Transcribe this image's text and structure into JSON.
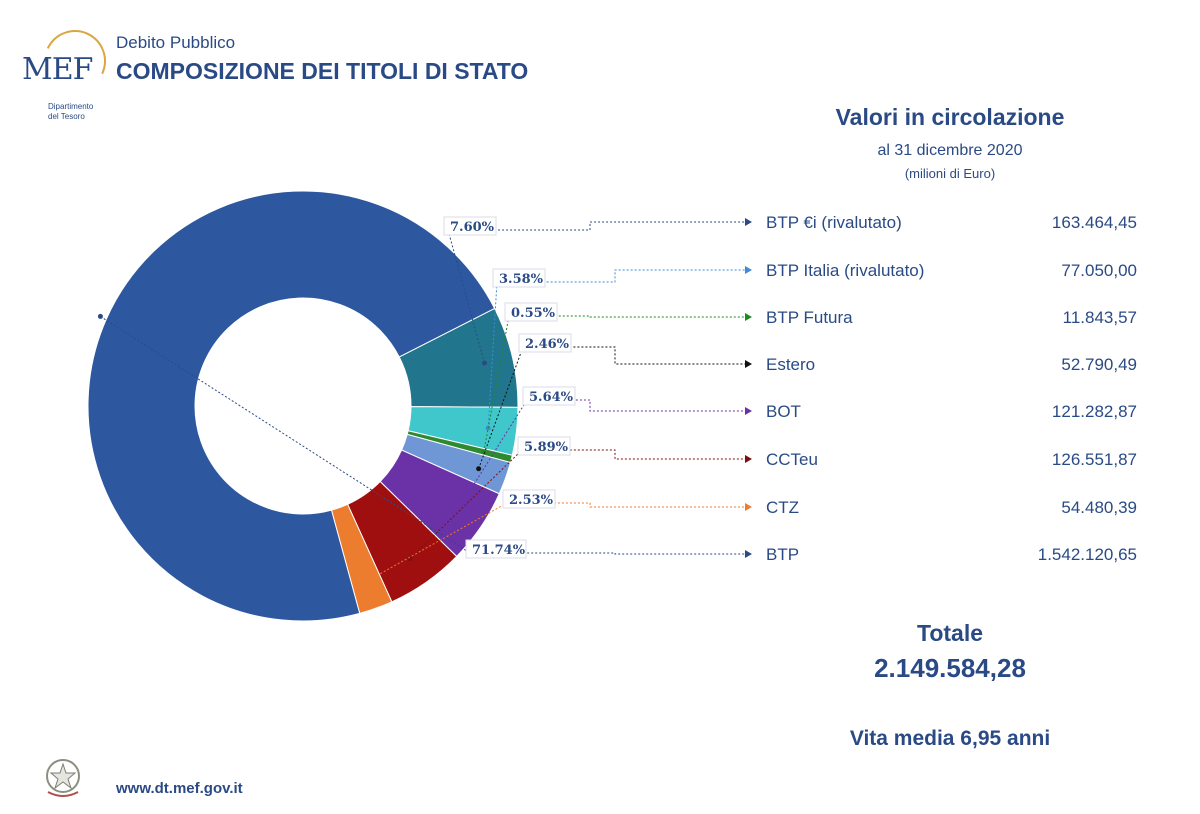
{
  "header": {
    "logo_text": "MEF",
    "logo_subtitle": "Dipartimento\ndel Tesoro",
    "subtitle": "Debito Pubblico",
    "title": "COMPOSIZIONE DEI TITOLI DI STATO"
  },
  "values_panel": {
    "title": "Valori in circolazione",
    "date": "al 31 dicembre 2020",
    "unit": "(milioni di Euro)"
  },
  "summary": {
    "total_label": "Totale",
    "total_value": "2.149.584,28",
    "vita_media": "Vita media 6,95 anni"
  },
  "footer": {
    "url": "www.dt.mef.gov.it",
    "emblem_icon": "italian-republic-emblem-icon"
  },
  "chart_data": {
    "type": "pie",
    "title": "COMPOSIZIONE DEI TITOLI DI STATO",
    "donut": true,
    "slices": [
      {
        "name": "BTP €i (rivalutato)",
        "percent": 7.6,
        "percent_label": "7.60%",
        "value_label": "163.464,45",
        "color": "#21768d"
      },
      {
        "name": "BTP Italia (rivalutato)",
        "percent": 3.58,
        "percent_label": "3.58%",
        "value_label": "77.050,00",
        "color": "#3fc7cc"
      },
      {
        "name": "BTP Futura",
        "percent": 0.55,
        "percent_label": "0.55%",
        "value_label": "11.843,57",
        "color": "#2f8a2f"
      },
      {
        "name": "Estero",
        "percent": 2.46,
        "percent_label": "2.46%",
        "value_label": "52.790,49",
        "color": "#6f97d6"
      },
      {
        "name": "BOT",
        "percent": 5.64,
        "percent_label": "5.64%",
        "value_label": "121.282,87",
        "color": "#6a32a6"
      },
      {
        "name": "CCTeu",
        "percent": 5.89,
        "percent_label": "5.89%",
        "value_label": "126.551,87",
        "color": "#a00f0f"
      },
      {
        "name": "CTZ",
        "percent": 2.53,
        "percent_label": "2.53%",
        "value_label": "54.480,39",
        "color": "#ec7c2e"
      },
      {
        "name": "BTP",
        "percent": 71.74,
        "percent_label": "71.74%",
        "value_label": "1.542.120,65",
        "color": "#2d58a0"
      }
    ],
    "connector_colors": [
      "#2a4a86",
      "#3f8bd6",
      "#1d8a1d",
      "#111111",
      "#6a32a6",
      "#7b1010",
      "#ec7c2e",
      "#2a4a86"
    ]
  }
}
